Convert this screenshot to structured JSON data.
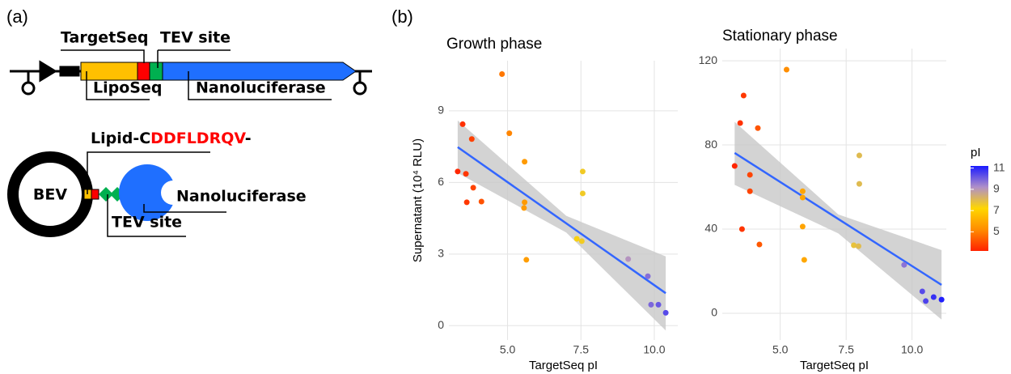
{
  "panel_labels": [
    "(a)",
    "(b)"
  ],
  "diagram": {
    "construct": {
      "targetseq": "TargetSeq",
      "tev": "TEV site",
      "liposeq": "LipoSeq",
      "nanoluc": "Nanoluciferase"
    },
    "vesicle": {
      "lipid_prefix": "Lipid-C",
      "peptide": "DDFLDRQV",
      "suffix": "-",
      "bev": "BEV",
      "nanoluc": "Nanoluciferase",
      "tev": "TEV site"
    }
  },
  "chart_data": [
    {
      "type": "scatter",
      "title": "Growth phase",
      "ylabel": "Supernatant (10⁴ RLU)",
      "xlabel": "TargetSeq pI",
      "x": [
        3.3,
        3.47,
        3.58,
        3.61,
        3.78,
        3.83,
        4.11,
        4.81,
        5.06,
        5.58,
        5.58,
        5.56,
        5.64,
        7.36,
        7.53,
        7.56,
        7.56,
        9.11,
        9.78,
        9.89,
        10.14,
        10.39
      ],
      "values": [
        6.46,
        8.44,
        6.36,
        5.17,
        7.82,
        5.78,
        5.2,
        10.54,
        8.06,
        6.87,
        5.17,
        4.93,
        2.76,
        3.64,
        3.54,
        6.46,
        5.54,
        2.79,
        2.07,
        0.88,
        0.88,
        0.54
      ],
      "fit": {
        "x": [
          3.3,
          10.39
        ],
        "values": [
          7.48,
          1.36
        ]
      },
      "band": {
        "x": [
          3.3,
          7.0,
          10.39
        ],
        "upper": [
          8.6,
          4.6,
          2.9
        ],
        "lower": [
          6.4,
          3.9,
          -0.2
        ]
      },
      "fit_color": "#3366ff",
      "band_color": "#c8c8c8",
      "xlim": [
        3.0,
        10.8
      ],
      "ylim": [
        -0.6,
        11.1
      ],
      "xticks": [
        {
          "value": 5,
          "label": "5.0"
        },
        {
          "value": 7.5,
          "label": "7.5"
        },
        {
          "value": 10,
          "label": "10.0"
        }
      ],
      "yticks": [
        0,
        3,
        6,
        9
      ],
      "grid": true
    },
    {
      "type": "scatter",
      "title": "Stationary phase",
      "xlabel": "TargetSeq pI",
      "x": [
        3.27,
        3.48,
        3.61,
        3.55,
        3.85,
        3.85,
        4.15,
        4.21,
        5.24,
        5.85,
        5.85,
        5.85,
        5.91,
        7.79,
        7.97,
        8.0,
        8.0,
        9.7,
        10.39,
        10.52,
        10.82,
        11.12
      ],
      "values": [
        70,
        90.4,
        103.5,
        40,
        65.8,
        58,
        88,
        32.7,
        115.8,
        58,
        55,
        41.2,
        25.4,
        32.3,
        31.9,
        75,
        61.5,
        23,
        10.4,
        5.8,
        7.7,
        6.5
      ],
      "fit": {
        "x": [
          3.27,
          11.12
        ],
        "values": [
          76.2,
          13.5
        ]
      },
      "band": {
        "x": [
          3.27,
          7.2,
          11.12
        ],
        "upper": [
          91,
          47,
          30
        ],
        "lower": [
          61,
          38,
          -3
        ]
      },
      "fit_color": "#3366ff",
      "band_color": "#c8c8c8",
      "xlim": [
        2.8,
        11.3
      ],
      "ylim": [
        -12.7,
        125.8
      ],
      "xticks": [
        {
          "value": 5,
          "label": "5.0"
        },
        {
          "value": 7.5,
          "label": "7.5"
        },
        {
          "value": 10,
          "label": "10.0"
        }
      ],
      "yticks": [
        0,
        40,
        80,
        120
      ],
      "grid": true,
      "colorbar": {
        "title": "pI",
        "lim": [
          3.2,
          11.2
        ],
        "ticks": [
          5,
          7,
          9,
          11
        ],
        "colors": [
          "#ff2200",
          "#ff8c00",
          "#ffd700",
          "#b090c8",
          "#1a1aff"
        ]
      }
    }
  ]
}
